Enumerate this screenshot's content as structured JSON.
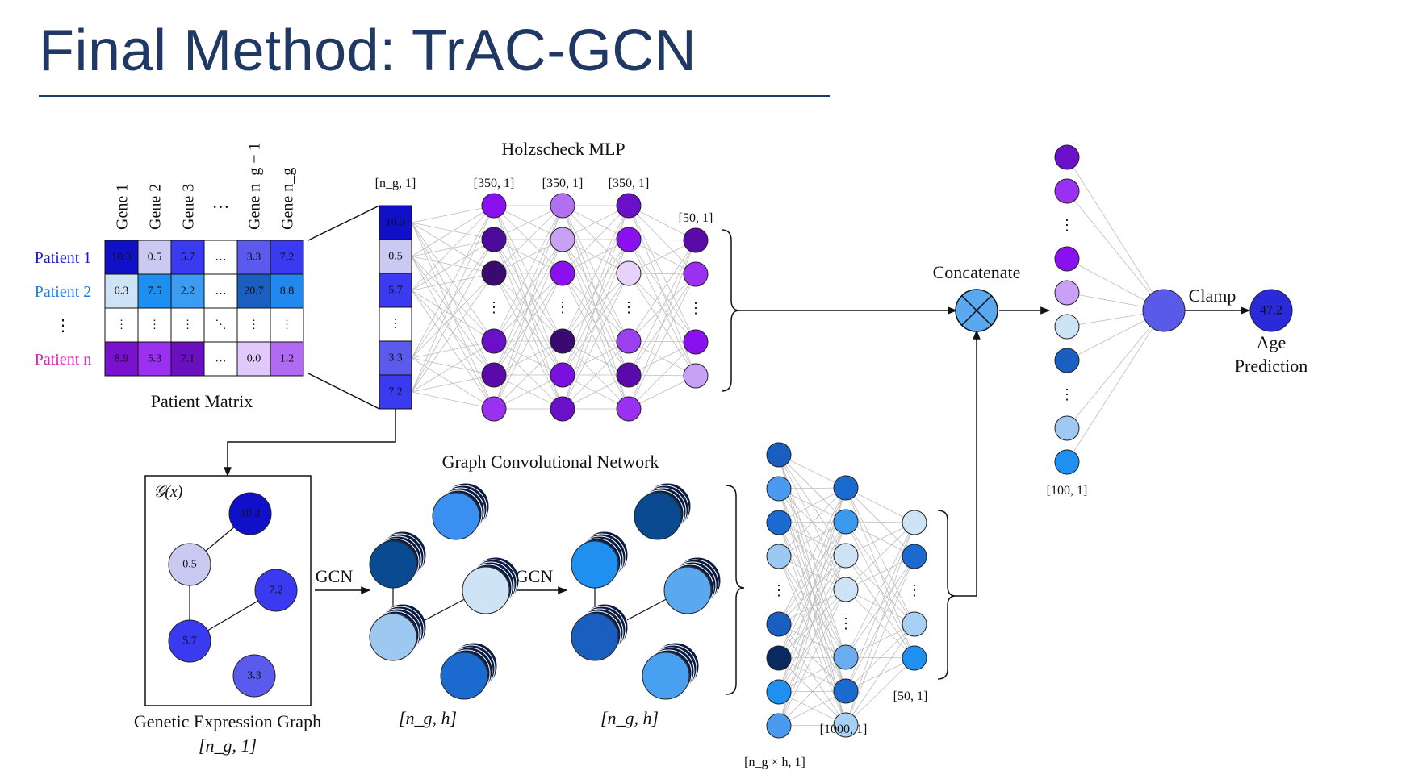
{
  "slide": {
    "title": "Final Method: TrAC-GCN"
  },
  "patient_matrix": {
    "caption": "Patient Matrix",
    "columns": [
      "Gene 1",
      "Gene 2",
      "Gene 3",
      "…",
      "Gene n_g − 1",
      "Gene n_g"
    ],
    "rows": [
      {
        "label": "Patient 1",
        "label_color": "#1a1acc",
        "cells": [
          "10.3",
          "0.5",
          "5.7",
          "…",
          "3.3",
          "7.2"
        ],
        "colors": [
          "#1010c8",
          "#c9c9f2",
          "#3a3af0",
          "#ffffff",
          "#5a5aec",
          "#3a3af0"
        ]
      },
      {
        "label": "Patient 2",
        "label_color": "#1f7fe0",
        "cells": [
          "0.3",
          "7.5",
          "2.2",
          "…",
          "20.7",
          "8.8"
        ],
        "colors": [
          "#cfe3f7",
          "#1c8ff0",
          "#3b9cf2",
          "#ffffff",
          "#1a5fc0",
          "#2088ee"
        ]
      },
      {
        "label": "⋮",
        "label_color": "#111111",
        "cells": [
          "⋮",
          "⋮",
          "⋮",
          "⋱",
          "⋮",
          "⋮"
        ],
        "colors": [
          "#ffffff",
          "#ffffff",
          "#ffffff",
          "#ffffff",
          "#ffffff",
          "#ffffff"
        ]
      },
      {
        "label": "Patient n",
        "label_color": "#e020c0",
        "cells": [
          "8.9",
          "5.3",
          "7.1",
          "…",
          "0.0",
          "1.2"
        ],
        "colors": [
          "#7a10d0",
          "#9a30f0",
          "#6a10c0",
          "#ffffff",
          "#e2c9fb",
          "#b06bf2"
        ]
      }
    ]
  },
  "input_vector": {
    "dim_label": "[n_g, 1]",
    "cells": [
      "10.3",
      "0.5",
      "5.7",
      "⋮",
      "3.3",
      "7.2"
    ],
    "colors": [
      "#1010c8",
      "#c9c9f2",
      "#3a3af0",
      "#ffffff",
      "#5a5aec",
      "#3a3af0"
    ]
  },
  "mlp": {
    "title": "Holzscheck MLP",
    "layer_dims": [
      "[350, 1]",
      "[350, 1]",
      "[350, 1]",
      "[50, 1]"
    ],
    "layers": [
      [
        "#8a10f0",
        "#4b0a9a",
        "#3a0a70",
        "⋮",
        "#6a10c8",
        "#5a0aa8",
        "#9a30f0"
      ],
      [
        "#b070f0",
        "#c8a0f4",
        "#8a10f0",
        "⋮",
        "#3a0a70",
        "#7a10e0",
        "#6a10c8"
      ],
      [
        "#6a10c8",
        "#8a10f0",
        "#e6d2fb",
        "⋮",
        "#9a40f0",
        "#5a0aa8",
        "#9a30f0"
      ],
      [
        "#5a0aa8",
        "#9a30f0",
        "⋮",
        "#8a10f0",
        "#c8a0f4"
      ]
    ]
  },
  "concat": {
    "label": "Concatenate"
  },
  "combined": {
    "dim_label": "[100, 1]",
    "nodes": [
      "#6a10c8",
      "#9a30f0",
      "⋮",
      "#8a10f0",
      "#c8a0f4",
      "#cfe3f7",
      "#1a5fc0",
      "⋮",
      "#a0c8f0",
      "#1f8ff0"
    ]
  },
  "output": {
    "clamp_label": "Clamp",
    "hidden_color": "#5a5ae8",
    "value": "47.2",
    "value_color": "#2a2ad8",
    "label": [
      "Age",
      "Prediction"
    ]
  },
  "graph": {
    "function_label": "𝒢(x)",
    "caption": "Genetic Expression Graph",
    "dim_label": "[n_g, 1]",
    "nodes": [
      {
        "value": "10.3",
        "color": "#1010c8"
      },
      {
        "value": "0.5",
        "color": "#c9c9f2"
      },
      {
        "value": "7.2",
        "color": "#3a3af0"
      },
      {
        "value": "5.7",
        "color": "#3a3af0"
      },
      {
        "value": "3.3",
        "color": "#5a5aec"
      }
    ]
  },
  "gcn": {
    "title": "Graph Convolutional Network",
    "step_label": "GCN",
    "dim_label": "[n_g, h]",
    "stage1_colors": [
      "#3a8ff0",
      "#0a4a90",
      "#cfe3f7",
      "#9cc8f2",
      "#1a6ad0"
    ],
    "stage2_colors": [
      "#0a4a90",
      "#1f8ff0",
      "#5aa8f0",
      "#1a5fc0",
      "#4aa0f0"
    ]
  },
  "gcn_mlp": {
    "input_dim": "[n_g × h, 1]",
    "hidden_dim": "[1000, 1]",
    "out_dim": "[50, 1]",
    "layers": [
      [
        "#1a5fc0",
        "#4a9af0",
        "#1a6ad0",
        "#9cc8f2",
        "⋮",
        "#1a5fc0",
        "#0a2a60",
        "#1f8ff0",
        "#4a9af0"
      ],
      [
        "#1a6ad0",
        "#3a9af0",
        "#cfe3f7",
        "#cfe3f7",
        "⋮",
        "#6aaef0",
        "#1a6ad0",
        "#a8cff4"
      ],
      [
        "#cfe3f7",
        "#1a6ad0",
        "⋮",
        "#a8cff4",
        "#1f8ff0"
      ]
    ]
  }
}
